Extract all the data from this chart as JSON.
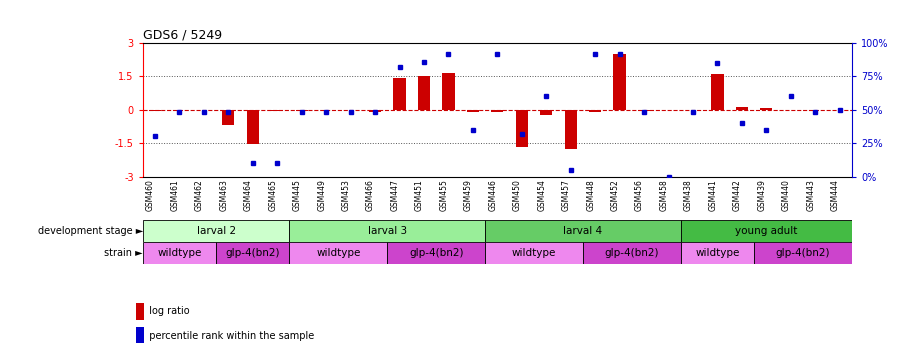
{
  "title": "GDS6 / 5249",
  "samples": [
    "GSM460",
    "GSM461",
    "GSM462",
    "GSM463",
    "GSM464",
    "GSM465",
    "GSM445",
    "GSM449",
    "GSM453",
    "GSM466",
    "GSM447",
    "GSM451",
    "GSM455",
    "GSM459",
    "GSM446",
    "GSM450",
    "GSM454",
    "GSM457",
    "GSM448",
    "GSM452",
    "GSM456",
    "GSM458",
    "GSM438",
    "GSM441",
    "GSM442",
    "GSM439",
    "GSM440",
    "GSM443",
    "GSM444"
  ],
  "log_ratio": [
    -0.05,
    0.0,
    0.0,
    -0.7,
    -1.55,
    -0.05,
    -0.05,
    0.0,
    0.0,
    -0.1,
    1.43,
    1.52,
    1.65,
    -0.12,
    -0.1,
    -1.65,
    -0.25,
    -1.75,
    -0.1,
    2.5,
    -0.05,
    0.0,
    0.0,
    1.6,
    0.1,
    0.08,
    0.0,
    0.0,
    0.0
  ],
  "percentile": [
    30,
    48,
    48,
    48,
    10,
    10,
    48,
    48,
    48,
    48,
    82,
    86,
    92,
    35,
    92,
    32,
    60,
    5,
    92,
    92,
    48,
    0,
    48,
    85,
    40,
    35,
    60,
    48,
    50
  ],
  "ylim": [
    -3,
    3
  ],
  "yticks": [
    -3,
    -1.5,
    0,
    1.5,
    3
  ],
  "ytick_labels": [
    "-3",
    "-1.5",
    "0",
    "1.5",
    "3"
  ],
  "right_yticks": [
    0,
    25,
    50,
    75,
    100
  ],
  "right_ytick_labels": [
    "0%",
    "25%",
    "50%",
    "75%",
    "100%"
  ],
  "bar_color": "#cc0000",
  "dot_color": "#0000cc",
  "zero_line_color": "#cc0000",
  "dotted_line_color": "#555555",
  "background_color": "#ffffff",
  "dev_stages": [
    {
      "label": "larval 2",
      "start": 0,
      "end": 5,
      "color": "#ccffcc"
    },
    {
      "label": "larval 3",
      "start": 6,
      "end": 13,
      "color": "#99ee99"
    },
    {
      "label": "larval 4",
      "start": 14,
      "end": 21,
      "color": "#66cc66"
    },
    {
      "label": "young adult",
      "start": 22,
      "end": 28,
      "color": "#44bb44"
    }
  ],
  "strains": [
    {
      "label": "wildtype",
      "start": 0,
      "end": 2,
      "color": "#ee88ee"
    },
    {
      "label": "glp-4(bn2)",
      "start": 3,
      "end": 5,
      "color": "#cc44cc"
    },
    {
      "label": "wildtype",
      "start": 6,
      "end": 9,
      "color": "#ee88ee"
    },
    {
      "label": "glp-4(bn2)",
      "start": 10,
      "end": 13,
      "color": "#cc44cc"
    },
    {
      "label": "wildtype",
      "start": 14,
      "end": 17,
      "color": "#ee88ee"
    },
    {
      "label": "glp-4(bn2)",
      "start": 18,
      "end": 21,
      "color": "#cc44cc"
    },
    {
      "label": "wildtype",
      "start": 22,
      "end": 24,
      "color": "#ee88ee"
    },
    {
      "label": "glp-4(bn2)",
      "start": 25,
      "end": 28,
      "color": "#cc44cc"
    }
  ],
  "dev_stage_label": "development stage",
  "strain_label": "strain",
  "legend_log_ratio": "log ratio",
  "legend_percentile": "percentile rank within the sample"
}
